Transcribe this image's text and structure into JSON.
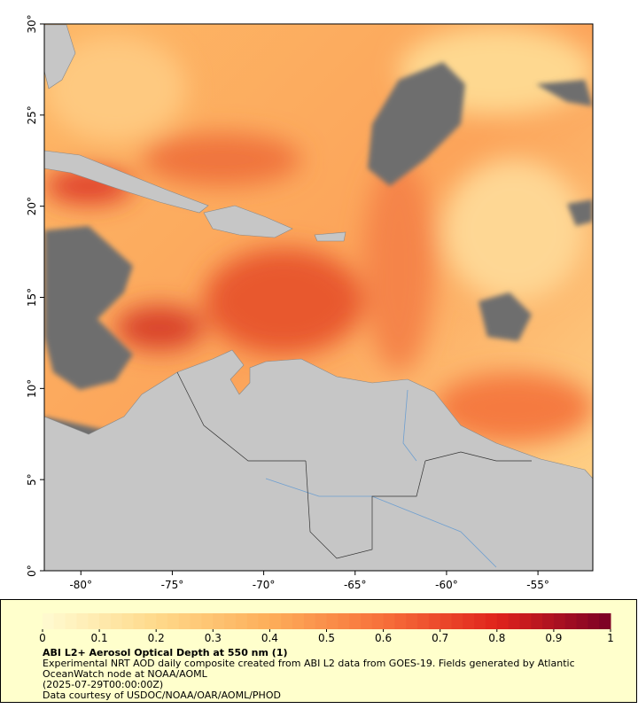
{
  "map": {
    "lonlim": [
      -82,
      -52
    ],
    "latlim": [
      0,
      30
    ],
    "lon_ticks": [
      {
        "value": -80,
        "label": "-80°"
      },
      {
        "value": -75,
        "label": "-75°"
      },
      {
        "value": -70,
        "label": "-70°"
      },
      {
        "value": -65,
        "label": "-65°"
      },
      {
        "value": -60,
        "label": "-60°"
      },
      {
        "value": -55,
        "label": "-55°"
      }
    ],
    "lat_ticks": [
      {
        "value": 0,
        "label": "0°"
      },
      {
        "value": 5,
        "label": "5°"
      },
      {
        "value": 10,
        "label": "10°"
      },
      {
        "value": 15,
        "label": "15°"
      },
      {
        "value": 20,
        "label": "20°"
      },
      {
        "value": 25,
        "label": "25°"
      },
      {
        "value": 30,
        "label": "30°"
      }
    ]
  },
  "colorbar": {
    "lim": [
      0,
      1
    ],
    "ticks": [
      0,
      0.1,
      0.2,
      0.3,
      0.4,
      0.5,
      0.6,
      0.7,
      0.8,
      0.9,
      1
    ],
    "colors": [
      "#fffbd2",
      "#fed98a",
      "#fdae5a",
      "#f7703a",
      "#e0231c",
      "#7a0025"
    ]
  },
  "caption": {
    "title": "ABI L2+ Aerosol Optical Depth at 550 nm (1)",
    "description": "Experimental NRT AOD daily composite created from ABI L2 data from GOES-19. Fields generated by Atlantic OceanWatch node at NOAA/AOML",
    "date": "(2025-07-29T00:00:00Z)",
    "credit": "Data courtesy of USDOC/NOAA/OAR/AOML/PHOD"
  }
}
